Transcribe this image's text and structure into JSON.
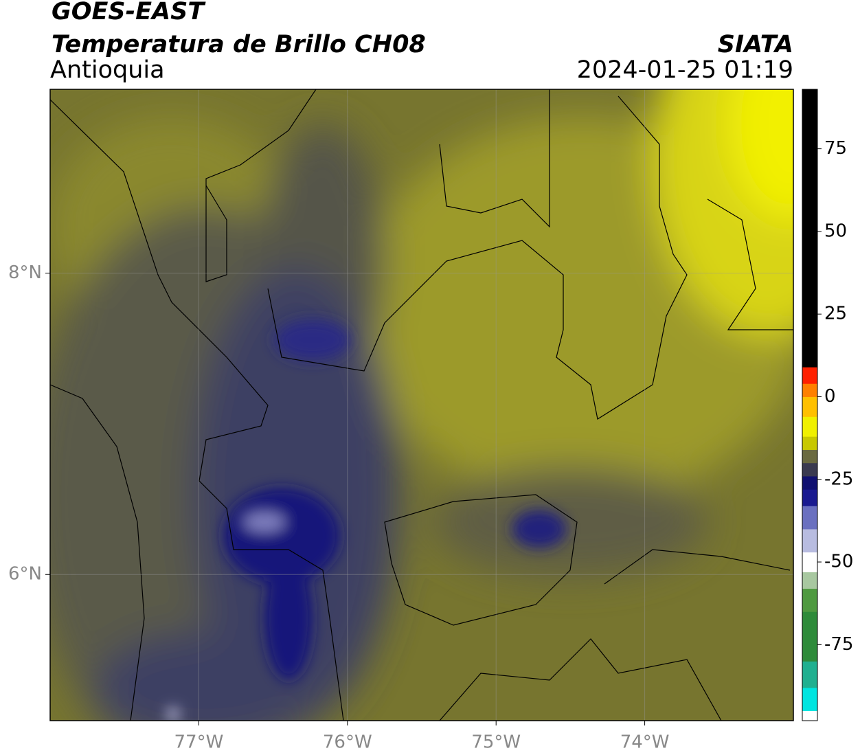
{
  "header": {
    "title": "GOES-EAST",
    "subtitle": "Temperatura de Brillo CH08",
    "region": "Antioquia",
    "source": "SIATA",
    "datetime": "2024-01-25 01:19"
  },
  "map": {
    "xlim": [
      -78,
      -73
    ],
    "ylim": [
      5.03,
      9.22
    ],
    "xticks": [
      {
        "value": -77,
        "label": "77°W"
      },
      {
        "value": -76,
        "label": "76°W"
      },
      {
        "value": -75,
        "label": "75°W"
      },
      {
        "value": -74,
        "label": "74°W"
      }
    ],
    "yticks": [
      {
        "value": 8,
        "label": "8°N"
      },
      {
        "value": 6,
        "label": "6°N"
      }
    ],
    "grid": true
  },
  "colorbar": {
    "lim": [
      -98,
      93
    ],
    "ticks": [
      75,
      50,
      25,
      0,
      -25,
      -50,
      -75
    ],
    "stops": [
      {
        "value": -98,
        "color": "#ffffff"
      },
      {
        "value": -95,
        "color": "#00e5e0"
      },
      {
        "value": -88,
        "color": "#20b090"
      },
      {
        "value": -80,
        "color": "#2e8b3a"
      },
      {
        "value": -65,
        "color": "#4f9a40"
      },
      {
        "value": -58,
        "color": "#a8c8a0"
      },
      {
        "value": -53,
        "color": "#ffffff"
      },
      {
        "value": -47,
        "color": "#b8bce0"
      },
      {
        "value": -40,
        "color": "#6a70c0"
      },
      {
        "value": -33,
        "color": "#1a1a90"
      },
      {
        "value": -28,
        "color": "#101070"
      },
      {
        "value": -24,
        "color": "#3a3a50"
      },
      {
        "value": -20,
        "color": "#6a6a40"
      },
      {
        "value": -16,
        "color": "#c8c800"
      },
      {
        "value": -12,
        "color": "#f0f000"
      },
      {
        "value": -6,
        "color": "#ffc000"
      },
      {
        "value": 0,
        "color": "#ff8000"
      },
      {
        "value": 4,
        "color": "#ff2000"
      },
      {
        "value": 9,
        "color": "#000000"
      }
    ]
  }
}
